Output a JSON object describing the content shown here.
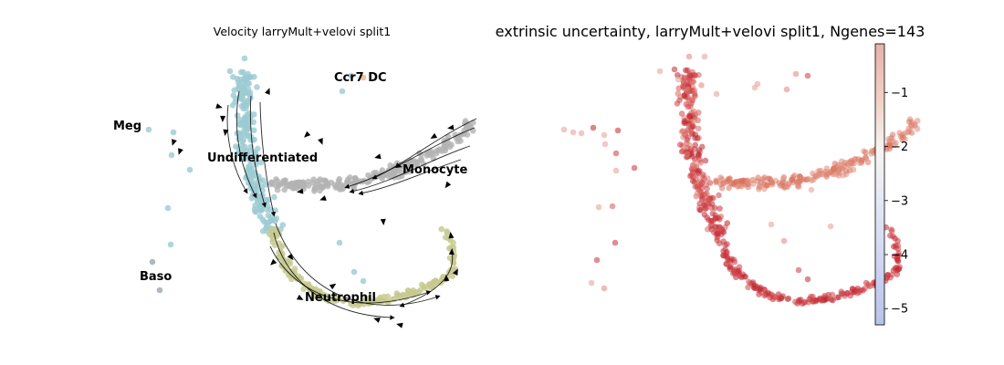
{
  "chart_data": [
    {
      "type": "scatter",
      "title": "Velocity larryMult+velovi split1",
      "cluster_labels": [
        {
          "text": "Ccr7 DC",
          "color": "#f4a261"
        },
        {
          "text": "Meg",
          "color": "#8fc6d0"
        },
        {
          "text": "Undifferentiated",
          "color": "#8fc6d0"
        },
        {
          "text": "Monocyte",
          "color": "#a6a6a6"
        },
        {
          "text": "Baso",
          "color": "#9aa8b0"
        },
        {
          "text": "Neutrophil",
          "color": "#bfc583"
        }
      ],
      "grid": false,
      "axes_visible": false,
      "overlay": "velocity streamlines with arrows"
    },
    {
      "type": "scatter",
      "title": "extrinsic uncertainty, larryMult+velovi split1, Ngenes=143",
      "colormap": "coolwarm",
      "colorbar": {
        "range": [
          -5.3,
          -0.1
        ],
        "ticks": [
          -1,
          -2,
          -3,
          -4,
          -5
        ],
        "tick_labels": [
          "−1",
          "−2",
          "−3",
          "−4",
          "−5"
        ]
      },
      "grid": false,
      "axes_visible": false
    }
  ]
}
